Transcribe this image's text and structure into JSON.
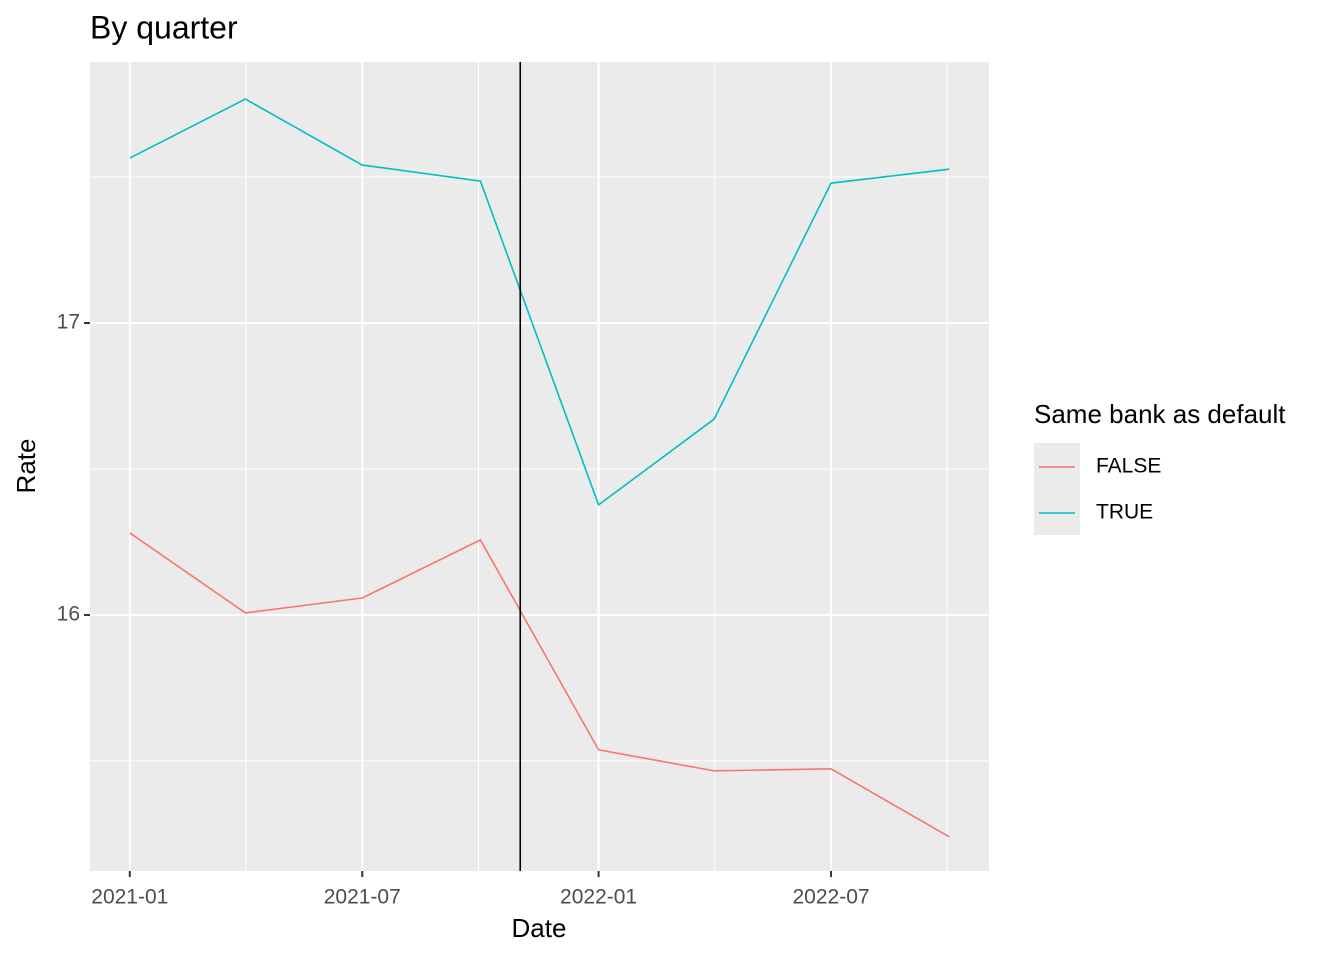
{
  "chart_data": {
    "type": "line",
    "title": "By quarter",
    "x_label": "Date",
    "y_label": "Rate",
    "x": [
      "2021-01",
      "2021-04",
      "2021-07",
      "2021-10",
      "2022-01",
      "2022-04",
      "2022-07",
      "2022-10"
    ],
    "series": [
      {
        "name": "FALSE",
        "color": "#F8766D",
        "values": [
          16.281,
          16.007,
          16.058,
          16.257,
          15.538,
          15.466,
          15.473,
          15.24
        ]
      },
      {
        "name": "TRUE",
        "color": "#00BFC4",
        "values": [
          17.565,
          17.767,
          17.541,
          17.486,
          16.377,
          16.671,
          17.479,
          17.527
        ]
      }
    ],
    "vline": "2021-11",
    "xlim": [
      "2020-12",
      "2022-11"
    ],
    "xticks": [
      "2021-01",
      "2021-07",
      "2022-01",
      "2022-07"
    ],
    "ylim": [
      15.123,
      17.894
    ],
    "yticks": [
      16,
      17
    ],
    "grid": true,
    "minor_grid": true,
    "legend_title": "Same bank as default",
    "legend_position": "right"
  }
}
